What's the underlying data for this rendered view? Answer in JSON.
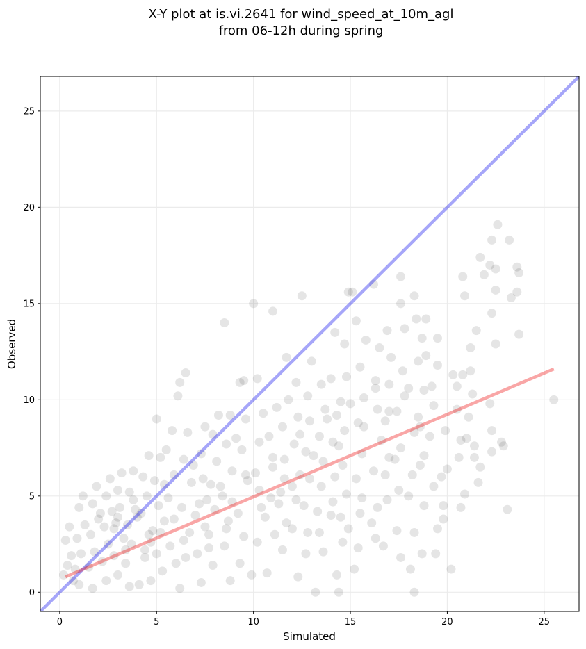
{
  "chart_data": {
    "type": "scatter",
    "title_lines": [
      "X-Y plot at is.vi.2641 for wind_speed_at_10m_agl",
      "from 06-12h during spring"
    ],
    "xlabel": "Simulated",
    "ylabel": "Observed",
    "xlim": [
      -1,
      26.8
    ],
    "ylim": [
      -1,
      26.8
    ],
    "x_ticks": [
      0,
      5,
      10,
      15,
      20,
      25
    ],
    "y_ticks": [
      0,
      5,
      10,
      15,
      20,
      25
    ],
    "grid": true,
    "legend": "none",
    "colors": {
      "points": "#000000",
      "identity_line": "#0000ee",
      "regression_line": "#ee0000"
    },
    "identity_line": {
      "x": [
        -1,
        26.8
      ],
      "y": [
        -1,
        26.8
      ]
    },
    "regression_line": {
      "x": [
        0.3,
        25.5
      ],
      "y": [
        0.8,
        11.6
      ]
    },
    "series": [
      {
        "points": [
          [
            25.5,
            10.0
          ],
          [
            23.7,
            16.6
          ],
          [
            23.6,
            16.9
          ],
          [
            23.7,
            13.4
          ],
          [
            23.6,
            15.6
          ],
          [
            23.1,
            4.3
          ],
          [
            22.9,
            7.6
          ],
          [
            22.8,
            7.8
          ],
          [
            23.2,
            18.3
          ],
          [
            23.3,
            15.3
          ],
          [
            22.6,
            19.1
          ],
          [
            22.5,
            16.8
          ],
          [
            22.5,
            15.7
          ],
          [
            22.5,
            12.9
          ],
          [
            22.3,
            18.3
          ],
          [
            22.3,
            14.5
          ],
          [
            22.2,
            17.0
          ],
          [
            22.2,
            9.8
          ],
          [
            22.3,
            8.4
          ],
          [
            22.3,
            7.3
          ],
          [
            21.7,
            17.4
          ],
          [
            21.9,
            16.5
          ],
          [
            21.5,
            13.6
          ],
          [
            21.4,
            7.6
          ],
          [
            21.4,
            7.0
          ],
          [
            21.7,
            6.5
          ],
          [
            21.2,
            12.7
          ],
          [
            21.2,
            11.5
          ],
          [
            21.3,
            10.3
          ],
          [
            21.1,
            9.1
          ],
          [
            21.6,
            5.7
          ],
          [
            20.8,
            16.4
          ],
          [
            20.9,
            15.4
          ],
          [
            20.8,
            11.3
          ],
          [
            20.7,
            7.9
          ],
          [
            20.6,
            7.0
          ],
          [
            20.9,
            5.1
          ],
          [
            20.7,
            4.4
          ],
          [
            20.5,
            10.7
          ],
          [
            20.2,
            1.2
          ],
          [
            20.0,
            6.4
          ],
          [
            19.8,
            4.5
          ],
          [
            19.8,
            3.8
          ],
          [
            19.5,
            13.2
          ],
          [
            19.5,
            11.8
          ],
          [
            19.3,
            9.7
          ],
          [
            19.3,
            5.5
          ],
          [
            19.5,
            3.3
          ],
          [
            19.4,
            2.0
          ],
          [
            18.9,
            14.2
          ],
          [
            18.7,
            13.2
          ],
          [
            18.9,
            12.3
          ],
          [
            18.8,
            10.5
          ],
          [
            18.6,
            8.6
          ],
          [
            18.8,
            7.1
          ],
          [
            18.8,
            4.5
          ],
          [
            18.7,
            2.0
          ],
          [
            18.3,
            15.4
          ],
          [
            18.4,
            14.2
          ],
          [
            18.5,
            12.0
          ],
          [
            18.0,
            10.6
          ],
          [
            18.3,
            8.3
          ],
          [
            18.2,
            6.1
          ],
          [
            18.3,
            3.1
          ],
          [
            18.1,
            1.2
          ],
          [
            18.3,
            0.0
          ],
          [
            17.6,
            16.4
          ],
          [
            17.6,
            15.0
          ],
          [
            17.8,
            13.7
          ],
          [
            17.7,
            11.5
          ],
          [
            17.4,
            9.4
          ],
          [
            17.6,
            7.5
          ],
          [
            17.5,
            5.3
          ],
          [
            17.4,
            3.2
          ],
          [
            17.6,
            1.8
          ],
          [
            16.9,
            13.6
          ],
          [
            17.1,
            12.2
          ],
          [
            17.0,
            10.8
          ],
          [
            16.8,
            8.9
          ],
          [
            17.0,
            7.0
          ],
          [
            16.9,
            4.8
          ],
          [
            16.7,
            2.4
          ],
          [
            16.2,
            16.0
          ],
          [
            16.5,
            12.7
          ],
          [
            16.3,
            11.0
          ],
          [
            16.4,
            9.5
          ],
          [
            16.6,
            7.9
          ],
          [
            16.2,
            6.3
          ],
          [
            16.4,
            4.4
          ],
          [
            16.3,
            2.8
          ],
          [
            15.1,
            15.6
          ],
          [
            15.3,
            14.1
          ],
          [
            15.8,
            13.1
          ],
          [
            15.5,
            11.7
          ],
          [
            15.7,
            10.1
          ],
          [
            15.4,
            8.8
          ],
          [
            15.6,
            7.2
          ],
          [
            15.3,
            5.9
          ],
          [
            15.5,
            4.1
          ],
          [
            15.4,
            2.3
          ],
          [
            15.2,
            1.2
          ],
          [
            14.9,
            15.6
          ],
          [
            14.7,
            12.9
          ],
          [
            14.8,
            11.2
          ],
          [
            14.5,
            9.9
          ],
          [
            14.7,
            8.4
          ],
          [
            14.6,
            6.6
          ],
          [
            14.8,
            5.1
          ],
          [
            14.5,
            3.9
          ],
          [
            14.6,
            2.6
          ],
          [
            14.2,
            13.5
          ],
          [
            14.0,
            11.1
          ],
          [
            14.3,
            9.2
          ],
          [
            14.1,
            7.8
          ],
          [
            14.2,
            6.0
          ],
          [
            14.0,
            4.0
          ],
          [
            14.3,
            0.9
          ],
          [
            14.4,
            0.0
          ],
          [
            13.5,
            10.8
          ],
          [
            13.7,
            9.5
          ],
          [
            13.4,
            8.1
          ],
          [
            13.6,
            6.8
          ],
          [
            13.5,
            5.5
          ],
          [
            13.3,
            4.2
          ],
          [
            13.6,
            2.1
          ],
          [
            13.2,
            0.0
          ],
          [
            13.0,
            12.0
          ],
          [
            12.8,
            10.2
          ],
          [
            12.9,
            8.9
          ],
          [
            12.7,
            7.3
          ],
          [
            12.9,
            5.9
          ],
          [
            12.6,
            4.5
          ],
          [
            12.8,
            3.1
          ],
          [
            12.5,
            15.4
          ],
          [
            12.2,
            10.9
          ],
          [
            12.3,
            9.1
          ],
          [
            12.1,
            7.7
          ],
          [
            12.4,
            6.1
          ],
          [
            12.2,
            4.8
          ],
          [
            12.0,
            3.3
          ],
          [
            12.3,
            0.8
          ],
          [
            11.7,
            12.2
          ],
          [
            11.8,
            10.0
          ],
          [
            11.5,
            8.6
          ],
          [
            11.6,
            6.9
          ],
          [
            11.4,
            5.2
          ],
          [
            11.7,
            3.6
          ],
          [
            11.5,
            2.2
          ],
          [
            11.0,
            14.6
          ],
          [
            11.2,
            9.6
          ],
          [
            10.8,
            8.1
          ],
          [
            11.0,
            6.5
          ],
          [
            10.9,
            4.9
          ],
          [
            11.1,
            3.0
          ],
          [
            10.7,
            1.0
          ],
          [
            10.0,
            15.0
          ],
          [
            10.2,
            11.1
          ],
          [
            10.5,
            9.3
          ],
          [
            10.3,
            7.8
          ],
          [
            10.1,
            6.2
          ],
          [
            10.4,
            4.4
          ],
          [
            10.2,
            2.6
          ],
          [
            9.9,
            0.9
          ],
          [
            9.5,
            11.0
          ],
          [
            9.3,
            10.9
          ],
          [
            9.6,
            9.0
          ],
          [
            9.4,
            7.4
          ],
          [
            9.7,
            5.8
          ],
          [
            9.2,
            4.1
          ],
          [
            9.5,
            2.9
          ],
          [
            9.3,
            1.5
          ],
          [
            8.5,
            14.0
          ],
          [
            8.8,
            9.2
          ],
          [
            8.6,
            7.7
          ],
          [
            8.9,
            6.3
          ],
          [
            8.4,
            5.0
          ],
          [
            8.7,
            3.7
          ],
          [
            8.5,
            2.4
          ],
          [
            8.8,
            0.6
          ],
          [
            8.2,
            9.2
          ],
          [
            7.9,
            8.2
          ],
          [
            8.1,
            6.8
          ],
          [
            7.8,
            5.6
          ],
          [
            8.0,
            4.3
          ],
          [
            7.7,
            3.0
          ],
          [
            7.9,
            1.4
          ],
          [
            7.5,
            8.6
          ],
          [
            7.3,
            7.2
          ],
          [
            7.4,
            5.9
          ],
          [
            7.2,
            4.6
          ],
          [
            7.5,
            3.4
          ],
          [
            7.1,
            2.0
          ],
          [
            7.3,
            0.5
          ],
          [
            6.5,
            11.4
          ],
          [
            6.2,
            10.9
          ],
          [
            6.1,
            10.2
          ],
          [
            6.6,
            8.3
          ],
          [
            6.4,
            6.9
          ],
          [
            6.8,
            5.7
          ],
          [
            6.3,
            4.4
          ],
          [
            6.7,
            3.1
          ],
          [
            6.5,
            1.8
          ],
          [
            6.2,
            0.2
          ],
          [
            5.8,
            8.4
          ],
          [
            5.5,
            7.4
          ],
          [
            5.9,
            6.1
          ],
          [
            5.6,
            4.9
          ],
          [
            5.4,
            3.7
          ],
          [
            5.7,
            2.4
          ],
          [
            5.3,
            1.1
          ],
          [
            5.0,
            9.0
          ],
          [
            5.2,
            7.0
          ],
          [
            4.9,
            5.8
          ],
          [
            5.1,
            4.5
          ],
          [
            4.8,
            3.2
          ],
          [
            5.0,
            2.0
          ],
          [
            4.7,
            0.6
          ],
          [
            4.6,
            7.1
          ],
          [
            4.3,
            6.0
          ],
          [
            4.5,
            5.0
          ],
          [
            4.2,
            4.1
          ],
          [
            4.6,
            3.0
          ],
          [
            4.4,
            1.8
          ],
          [
            4.1,
            0.4
          ],
          [
            3.8,
            6.3
          ],
          [
            3.6,
            5.2
          ],
          [
            3.9,
            4.3
          ],
          [
            3.5,
            3.5
          ],
          [
            3.7,
            2.5
          ],
          [
            3.4,
            1.5
          ],
          [
            3.6,
            0.3
          ],
          [
            3.2,
            6.2
          ],
          [
            3.0,
            5.3
          ],
          [
            3.1,
            4.4
          ],
          [
            2.9,
            3.6
          ],
          [
            3.3,
            2.8
          ],
          [
            2.8,
            1.9
          ],
          [
            3.0,
            0.9
          ],
          [
            2.6,
            5.9
          ],
          [
            2.4,
            5.0
          ],
          [
            2.7,
            4.2
          ],
          [
            2.3,
            3.4
          ],
          [
            2.5,
            2.5
          ],
          [
            2.2,
            1.6
          ],
          [
            2.4,
            0.6
          ],
          [
            1.9,
            5.5
          ],
          [
            1.7,
            4.6
          ],
          [
            2.0,
            3.8
          ],
          [
            1.6,
            3.0
          ],
          [
            1.8,
            2.1
          ],
          [
            1.5,
            1.3
          ],
          [
            1.7,
            0.2
          ],
          [
            1.2,
            5.0
          ],
          [
            1.0,
            4.4
          ],
          [
            1.3,
            3.5
          ],
          [
            0.9,
            2.8
          ],
          [
            1.1,
            2.0
          ],
          [
            0.8,
            1.2
          ],
          [
            1.0,
            0.4
          ],
          [
            0.5,
            3.4
          ],
          [
            0.3,
            2.7
          ],
          [
            0.6,
            1.9
          ],
          [
            0.4,
            1.4
          ],
          [
            0.7,
            0.6
          ],
          [
            0.2,
            0.9
          ],
          [
            2.1,
            4.1
          ],
          [
            2.8,
            3.3
          ],
          [
            3.4,
            2.2
          ],
          [
            4.0,
            3.9
          ],
          [
            4.7,
            2.6
          ],
          [
            5.2,
            3.1
          ],
          [
            5.9,
            3.8
          ],
          [
            6.4,
            2.7
          ],
          [
            7.0,
            4.0
          ],
          [
            7.6,
            4.8
          ],
          [
            8.3,
            5.5
          ],
          [
            8.9,
            4.7
          ],
          [
            9.6,
            6.1
          ],
          [
            10.3,
            5.3
          ],
          [
            11.0,
            7.0
          ],
          [
            11.6,
            5.9
          ],
          [
            12.4,
            8.2
          ],
          [
            13.1,
            7.1
          ],
          [
            13.8,
            9.0
          ],
          [
            14.4,
            7.6
          ],
          [
            15.0,
            9.8
          ],
          [
            15.7,
            8.6
          ],
          [
            16.3,
            10.6
          ],
          [
            17.0,
            9.4
          ],
          [
            17.8,
            10.2
          ],
          [
            18.5,
            9.1
          ],
          [
            19.2,
            10.7
          ],
          [
            19.9,
            8.4
          ],
          [
            20.5,
            9.5
          ],
          [
            21.0,
            8.0
          ],
          [
            3.0,
            3.9
          ],
          [
            3.8,
            4.8
          ],
          [
            4.4,
            2.2
          ],
          [
            5.4,
            5.6
          ],
          [
            6.0,
            1.5
          ],
          [
            6.9,
            6.6
          ],
          [
            7.7,
            2.3
          ],
          [
            8.6,
            3.3
          ],
          [
            9.1,
            8.0
          ],
          [
            10.6,
            3.9
          ],
          [
            11.3,
            4.6
          ],
          [
            12.0,
            5.5
          ],
          [
            12.7,
            2.0
          ],
          [
            13.4,
            3.1
          ],
          [
            14.1,
            4.7
          ],
          [
            14.9,
            3.3
          ],
          [
            15.6,
            4.9
          ],
          [
            16.1,
            3.6
          ],
          [
            16.8,
            6.1
          ],
          [
            17.3,
            6.9
          ],
          [
            18.0,
            5.0
          ],
          [
            18.6,
            6.6
          ],
          [
            19.1,
            8.1
          ],
          [
            19.7,
            6.0
          ],
          [
            20.3,
            11.3
          ]
        ]
      }
    ]
  }
}
